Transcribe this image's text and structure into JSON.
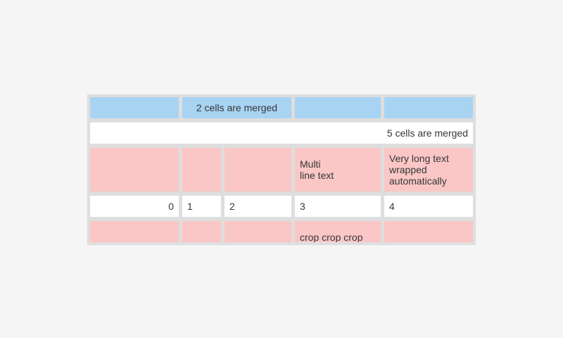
{
  "colors": {
    "page_bg": "#f5f5f5",
    "table_grid": "#dedede",
    "cell_blue": "#a8d3f3",
    "cell_pink": "#fbc6c6",
    "cell_white": "#ffffff",
    "cell_text": "#363636"
  },
  "table": {
    "row1": {
      "merged_cell_text": "2 cells are merged"
    },
    "row2": {
      "merged_cell_text": "5 cells are merged"
    },
    "row3": {
      "col4_text": "Multi\nline text",
      "col5_text": "Very long text wrapped automatically"
    },
    "row4": {
      "col1": "0",
      "col2": "1",
      "col3": "2",
      "col4": "3",
      "col5": "4"
    },
    "row5": {
      "col4_text": "crop crop crop crop"
    }
  }
}
